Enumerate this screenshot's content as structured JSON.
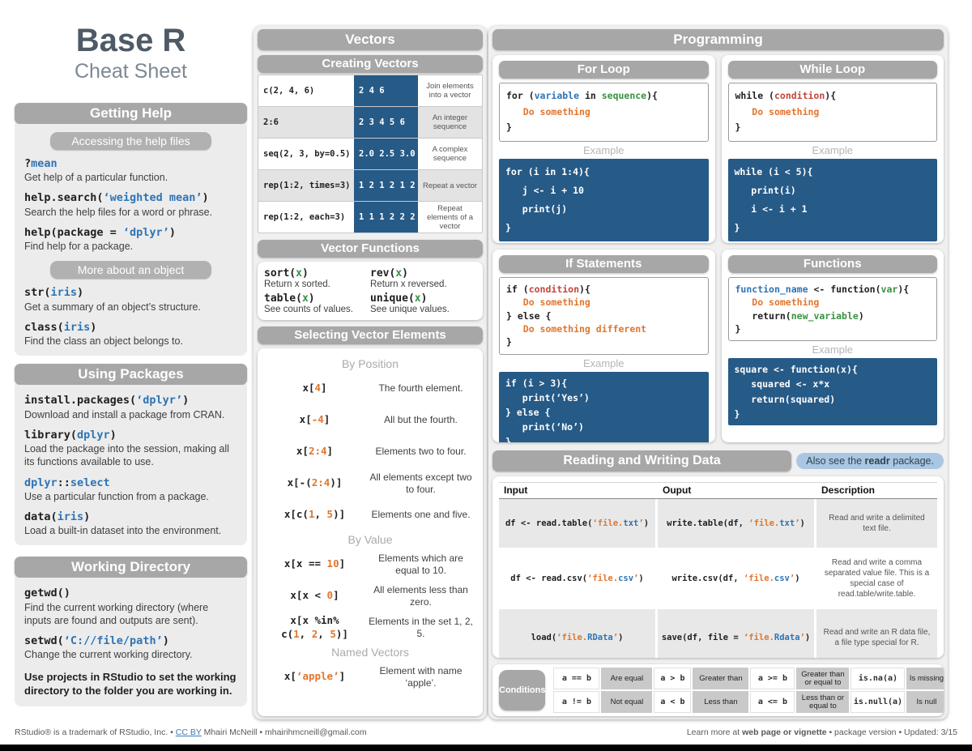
{
  "title": {
    "main": "Base R",
    "sub": "Cheat Sheet"
  },
  "colors": {
    "accent_blue": "#265a87",
    "header_gray": "#a7a7a7",
    "code_blue": "#2e74b5",
    "code_green": "#3a9142",
    "code_orange": "#e0762e",
    "code_red": "#c2453c",
    "badge_blue": "#a9c7e2"
  },
  "left": {
    "getting_help": {
      "header": "Getting Help",
      "sub_access": "Accessing the help files",
      "items": [
        {
          "code": [
            [
              "k",
              "?"
            ],
            [
              "b",
              "mean"
            ]
          ],
          "desc": "Get help of a particular function."
        },
        {
          "code": [
            [
              "k",
              "help.search("
            ],
            [
              "b",
              "‘weighted mean’"
            ],
            [
              "k",
              ")"
            ]
          ],
          "desc": "Search the help files for a word or phrase."
        },
        {
          "code": [
            [
              "k",
              "help(package = "
            ],
            [
              "b",
              "‘dplyr’"
            ],
            [
              "k",
              ")"
            ]
          ],
          "desc": "Find help for a package."
        }
      ],
      "sub_more": "More about an object",
      "items2": [
        {
          "code": [
            [
              "k",
              "str("
            ],
            [
              "b",
              "iris"
            ],
            [
              "k",
              ")"
            ]
          ],
          "desc": "Get a summary of an object’s structure."
        },
        {
          "code": [
            [
              "k",
              "class("
            ],
            [
              "b",
              "iris"
            ],
            [
              "k",
              ")"
            ]
          ],
          "desc": "Find the class an object belongs to."
        }
      ]
    },
    "using_packages": {
      "header": "Using Packages",
      "items": [
        {
          "code": [
            [
              "k",
              "install.packages("
            ],
            [
              "b",
              "‘dplyr’"
            ],
            [
              "k",
              ")"
            ]
          ],
          "desc": "Download and install a package from CRAN."
        },
        {
          "code": [
            [
              "k",
              "library("
            ],
            [
              "b",
              "dplyr"
            ],
            [
              "k",
              ")"
            ]
          ],
          "desc": "Load the package into the session, making all its functions available to use."
        },
        {
          "code": [
            [
              "b",
              "dplyr"
            ],
            [
              "k",
              "::"
            ],
            [
              "b",
              "select"
            ]
          ],
          "desc": "Use a particular function from a package."
        },
        {
          "code": [
            [
              "k",
              "data("
            ],
            [
              "b",
              "iris"
            ],
            [
              "k",
              ")"
            ]
          ],
          "desc": "Load a built-in dataset into the environment."
        }
      ]
    },
    "working_directory": {
      "header": "Working Directory",
      "items": [
        {
          "code": [
            [
              "k",
              "getwd()"
            ]
          ],
          "desc": "Find the current working directory (where inputs are found and outputs are sent)."
        },
        {
          "code": [
            [
              "k",
              "setwd("
            ],
            [
              "b",
              "‘C://file/path’"
            ],
            [
              "k",
              ")"
            ]
          ],
          "desc": "Change the current working directory."
        }
      ],
      "note": "Use projects in RStudio to set the working directory to the folder you are working in."
    }
  },
  "vectors": {
    "header": "Vectors",
    "creating": {
      "header": "Creating Vectors",
      "rows": [
        {
          "code": [
            [
              "k",
              "c(2, 4, 6)"
            ]
          ],
          "result": "2 4 6",
          "desc": "Join elements into a vector"
        },
        {
          "code": [
            [
              "k",
              "2:6"
            ]
          ],
          "result": "2 3 4 5 6",
          "desc": "An integer sequence"
        },
        {
          "code": [
            [
              "k",
              "seq(2, 3, by=0.5)"
            ]
          ],
          "result": "2.0 2.5 3.0",
          "desc": "A complex sequence"
        },
        {
          "code": [
            [
              "k",
              "rep(1:2, times=3)"
            ]
          ],
          "result": "1 2 1 2 1 2",
          "desc": "Repeat a vector"
        },
        {
          "code": [
            [
              "k",
              "rep(1:2, each=3)"
            ]
          ],
          "result": "1 1 1 2 2 2",
          "desc": "Repeat elements of a vector"
        }
      ]
    },
    "functions": {
      "header": "Vector Functions",
      "items": [
        {
          "code": [
            [
              "k",
              "sort("
            ],
            [
              "g",
              "x"
            ],
            [
              "k",
              ")"
            ]
          ],
          "desc": "Return x sorted."
        },
        {
          "code": [
            [
              "k",
              "rev("
            ],
            [
              "g",
              "x"
            ],
            [
              "k",
              ")"
            ]
          ],
          "desc": "Return x reversed."
        },
        {
          "code": [
            [
              "k",
              "table("
            ],
            [
              "g",
              "x"
            ],
            [
              "k",
              ")"
            ]
          ],
          "desc": "See counts of values."
        },
        {
          "code": [
            [
              "k",
              "unique("
            ],
            [
              "g",
              "x"
            ],
            [
              "k",
              ")"
            ]
          ],
          "desc": "See unique values."
        }
      ]
    },
    "selecting": {
      "header": "Selecting Vector Elements",
      "by_position": {
        "label": "By Position",
        "rows": [
          {
            "code": [
              [
                "k",
                "x["
              ],
              [
                "o",
                "4"
              ],
              [
                "k",
                "]"
              ]
            ],
            "desc": "The fourth element."
          },
          {
            "code": [
              [
                "k",
                "x["
              ],
              [
                "o",
                "-4"
              ],
              [
                "k",
                "]"
              ]
            ],
            "desc": "All but the fourth."
          },
          {
            "code": [
              [
                "k",
                "x["
              ],
              [
                "o",
                "2:4"
              ],
              [
                "k",
                "]"
              ]
            ],
            "desc": "Elements two to four."
          },
          {
            "code": [
              [
                "k",
                "x[-("
              ],
              [
                "o",
                "2:4"
              ],
              [
                "k",
                ")]"
              ]
            ],
            "desc": "All elements except two to four."
          },
          {
            "code": [
              [
                "k",
                "x[c("
              ],
              [
                "o",
                "1"
              ],
              [
                "k",
                ", "
              ],
              [
                "o",
                "5"
              ],
              [
                "k",
                ")]"
              ]
            ],
            "desc": "Elements one and five."
          }
        ]
      },
      "by_value": {
        "label": "By Value",
        "rows": [
          {
            "code": [
              [
                "k",
                "x[x == "
              ],
              [
                "o",
                "10"
              ],
              [
                "k",
                "]"
              ]
            ],
            "desc": "Elements which are equal to 10."
          },
          {
            "code": [
              [
                "k",
                "x[x < "
              ],
              [
                "o",
                "0"
              ],
              [
                "k",
                "]"
              ]
            ],
            "desc": "All elements less than zero."
          },
          {
            "code": [
              [
                "k",
                "x[x %in%\n"
              ],
              [
                "k",
                "c("
              ],
              [
                "o",
                "1"
              ],
              [
                "k",
                ", "
              ],
              [
                "o",
                "2"
              ],
              [
                "k",
                ", "
              ],
              [
                "o",
                "5"
              ],
              [
                "k",
                ")]"
              ]
            ],
            "desc": "Elements in the set 1, 2, 5."
          }
        ]
      },
      "named": {
        "label": "Named Vectors",
        "rows": [
          {
            "code": [
              [
                "k",
                "x["
              ],
              [
                "o",
                "‘apple’"
              ],
              [
                "k",
                "]"
              ]
            ],
            "desc": "Element with name ‘apple’."
          }
        ]
      }
    }
  },
  "programming": {
    "header": "Programming",
    "example_label": "Example",
    "for_loop": {
      "title": "For Loop",
      "syntax": [
        [
          [
            "k",
            "for ("
          ],
          [
            "b",
            "variable"
          ],
          [
            "k",
            " in "
          ],
          [
            "g",
            "sequence"
          ],
          [
            "k",
            "){"
          ]
        ],
        [
          [
            "o",
            "   Do something"
          ]
        ],
        [
          [
            "k",
            "}"
          ]
        ]
      ],
      "example": [
        "for (i in 1:4){",
        "   j <- i + 10",
        "   print(j)",
        "}"
      ]
    },
    "while_loop": {
      "title": "While Loop",
      "syntax": [
        [
          [
            "k",
            "while ("
          ],
          [
            "r",
            "condition"
          ],
          [
            "k",
            "){"
          ]
        ],
        [
          [
            "o",
            "   Do something"
          ]
        ],
        [
          [
            "k",
            "}"
          ]
        ]
      ],
      "example": [
        "while (i < 5){",
        "   print(i)",
        "   i <- i + 1",
        "}"
      ]
    },
    "if_statements": {
      "title": "If Statements",
      "syntax": [
        [
          [
            "k",
            "if ("
          ],
          [
            "r",
            "condition"
          ],
          [
            "k",
            "){"
          ]
        ],
        [
          [
            "o",
            "   Do something"
          ]
        ],
        [
          [
            "k",
            "} else {"
          ]
        ],
        [
          [
            "o",
            "   Do something different"
          ]
        ],
        [
          [
            "k",
            "}"
          ]
        ]
      ],
      "example": [
        "if (i > 3){",
        "   print(‘Yes’)",
        "} else {",
        "   print(‘No’)",
        "}"
      ]
    },
    "functions": {
      "title": "Functions",
      "syntax": [
        [
          [
            "b",
            "function_name"
          ],
          [
            "k",
            " <- function("
          ],
          [
            "g",
            "var"
          ],
          [
            "k",
            "){"
          ]
        ],
        [
          [
            "o",
            "   Do something"
          ]
        ],
        [
          [
            "k",
            "   return("
          ],
          [
            "g",
            "new_variable"
          ],
          [
            "k",
            ")"
          ]
        ],
        [
          [
            "k",
            "}"
          ]
        ]
      ],
      "example": [
        "square <- function(x){",
        "   squared <- x*x",
        "   return(squared)",
        "}"
      ]
    },
    "reading_writing": {
      "title": "Reading and Writing Data",
      "badge": {
        "pre": "Also see the ",
        "bold": "readr",
        "post": " package."
      },
      "table": {
        "headers": [
          "Input",
          "Ouput",
          "Description"
        ],
        "rows": [
          {
            "input": [
              [
                "k",
                "df <- read.table("
              ],
              [
                "o",
                "‘file."
              ],
              [
                "b",
                "txt"
              ],
              [
                "o",
                "’"
              ],
              [
                "k",
                ")"
              ]
            ],
            "output": [
              [
                "k",
                "write.table(df, "
              ],
              [
                "o",
                "‘file."
              ],
              [
                "b",
                "txt"
              ],
              [
                "o",
                "’"
              ],
              [
                "k",
                ")"
              ]
            ],
            "desc": "Read and write a delimited text file."
          },
          {
            "input": [
              [
                "k",
                "df <- read.csv("
              ],
              [
                "o",
                "‘file."
              ],
              [
                "b",
                "csv"
              ],
              [
                "o",
                "’"
              ],
              [
                "k",
                ")"
              ]
            ],
            "output": [
              [
                "k",
                "write.csv(df, "
              ],
              [
                "o",
                "‘file."
              ],
              [
                "b",
                "csv"
              ],
              [
                "o",
                "’"
              ],
              [
                "k",
                ")"
              ]
            ],
            "desc": "Read and write a comma separated value file. This is a special case of read.table/write.table."
          },
          {
            "input": [
              [
                "k",
                "load("
              ],
              [
                "o",
                "‘file."
              ],
              [
                "b",
                "RData"
              ],
              [
                "o",
                "’"
              ],
              [
                "k",
                ")"
              ]
            ],
            "output": [
              [
                "k",
                "save(df, file = "
              ],
              [
                "o",
                "‘file."
              ],
              [
                "b",
                "Rdata"
              ],
              [
                "o",
                "’"
              ],
              [
                "k",
                ")"
              ]
            ],
            "desc": "Read and write an R data file, a file type special for R."
          }
        ]
      }
    },
    "conditions": {
      "label": "Conditions",
      "rows": [
        [
          {
            "code": "a == b",
            "desc": "Are equal"
          },
          {
            "code": "a > b",
            "desc": "Greater than"
          },
          {
            "code": "a >= b",
            "desc": "Greater than or equal to"
          },
          {
            "code": "is.na(a)",
            "desc": "Is missing"
          }
        ],
        [
          {
            "code": "a != b",
            "desc": "Not equal"
          },
          {
            "code": "a < b",
            "desc": "Less than"
          },
          {
            "code": "a <= b",
            "desc": "Less than or equal to"
          },
          {
            "code": "is.null(a)",
            "desc": "Is null"
          }
        ]
      ]
    }
  },
  "footer": {
    "left": {
      "pre": "RStudio® is a trademark of RStudio, Inc.  •  ",
      "link": "CC BY",
      "post": " Mhairi McNeill  •  mhairihmcneill@gmail.com"
    },
    "right": {
      "pre": "Learn more at ",
      "bold": "web page or vignette",
      "post": "  •  package  version  •  Updated: 3/15"
    }
  }
}
